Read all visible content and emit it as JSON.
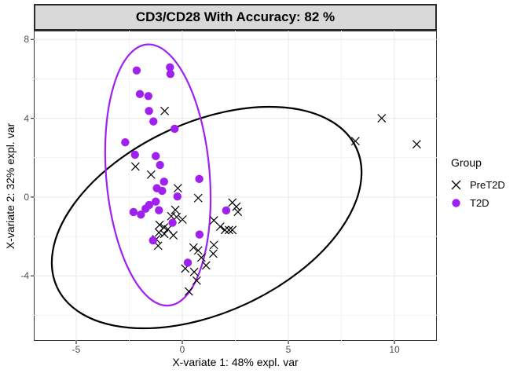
{
  "title": "CD3/CD28 With Accuracy: 82 %",
  "axes": {
    "x_title": "X-variate 1: 48% expl. var",
    "y_title": "X-variate 2: 32% expl. var"
  },
  "legend": {
    "title": "Group",
    "items": [
      {
        "label": "PreT2D",
        "marker": "x",
        "color": "#000000"
      },
      {
        "label": "T2D",
        "marker": "circle",
        "color": "#A020F0"
      }
    ]
  },
  "chart_data": {
    "type": "scatter",
    "title": "CD3/CD28 With Accuracy: 82 %",
    "xlabel": "X-variate 1: 48% expl. var",
    "ylabel": "X-variate 2: 32% expl. var",
    "xlim": [
      -7,
      12
    ],
    "ylim": [
      -7.3,
      8.45
    ],
    "x_ticks": [
      -5,
      0,
      5,
      10
    ],
    "x_minor_ticks": [
      -2.5,
      2.5,
      7.5
    ],
    "y_ticks": [
      8,
      4,
      0,
      -4
    ],
    "y_minor_ticks": [
      6,
      2,
      -2,
      -6
    ],
    "grid": true,
    "legend_position": "right",
    "colors": {
      "major_grid": "#e7e7e7",
      "minor_grid": "#f2f2f2",
      "tick": "#333333"
    },
    "series": [
      {
        "name": "PreT2D",
        "marker": "x",
        "color": "#000000",
        "points": [
          [
            -0.83,
            4.37
          ],
          [
            -2.21,
            1.55
          ],
          [
            -1.47,
            1.14
          ],
          [
            -0.21,
            0.45
          ],
          [
            0.75,
            -0.05
          ],
          [
            2.36,
            -0.28
          ],
          [
            2.55,
            -0.49
          ],
          [
            2.62,
            -0.75
          ],
          [
            -0.33,
            -0.65
          ],
          [
            -0.52,
            -0.97
          ],
          [
            -0.27,
            -1.01
          ],
          [
            0.01,
            -1.14
          ],
          [
            1.49,
            -1.18
          ],
          [
            1.79,
            -1.5
          ],
          [
            2.01,
            -1.67
          ],
          [
            2.2,
            -1.67
          ],
          [
            2.36,
            -1.67
          ],
          [
            -1.07,
            -1.41
          ],
          [
            -0.86,
            -1.54
          ],
          [
            -0.68,
            -1.63
          ],
          [
            -1.1,
            -1.8
          ],
          [
            -0.85,
            -1.87
          ],
          [
            -0.42,
            -1.94
          ],
          [
            -1.23,
            -2.14
          ],
          [
            -1.14,
            -2.47
          ],
          [
            0.53,
            -2.56
          ],
          [
            0.75,
            -2.71
          ],
          [
            1.49,
            -2.43
          ],
          [
            1.46,
            -2.87
          ],
          [
            0.9,
            -3.07
          ],
          [
            1.12,
            -3.47
          ],
          [
            0.14,
            -3.63
          ],
          [
            0.56,
            -3.8
          ],
          [
            0.68,
            -4.24
          ],
          [
            0.31,
            -4.79
          ],
          [
            8.16,
            2.84
          ],
          [
            9.4,
            4.0
          ],
          [
            11.05,
            2.68
          ]
        ]
      },
      {
        "name": "T2D",
        "marker": "circle",
        "color": "#A020F0",
        "points": [
          [
            -2.15,
            6.43
          ],
          [
            -0.58,
            6.59
          ],
          [
            -0.56,
            6.25
          ],
          [
            -2.0,
            5.23
          ],
          [
            -1.6,
            5.13
          ],
          [
            -1.57,
            4.37
          ],
          [
            -1.36,
            3.84
          ],
          [
            -0.36,
            3.47
          ],
          [
            -2.69,
            2.78
          ],
          [
            -2.23,
            2.15
          ],
          [
            -1.25,
            2.08
          ],
          [
            -1.05,
            1.63
          ],
          [
            0.8,
            0.92
          ],
          [
            -0.86,
            0.78
          ],
          [
            -1.2,
            0.45
          ],
          [
            -0.95,
            0.32
          ],
          [
            -0.23,
            0.03
          ],
          [
            -1.25,
            -0.23
          ],
          [
            -1.56,
            -0.4
          ],
          [
            -1.73,
            -0.59
          ],
          [
            -2.3,
            -0.76
          ],
          [
            -1.95,
            -0.89
          ],
          [
            -1.1,
            -0.67
          ],
          [
            2.07,
            -0.68
          ],
          [
            -0.46,
            -1.3
          ],
          [
            0.81,
            -1.9
          ],
          [
            -1.38,
            -2.2
          ],
          [
            0.26,
            -3.33
          ]
        ]
      }
    ],
    "ellipses": [
      {
        "group": "PreT2D",
        "color": "#000000",
        "cx": 1.15,
        "cy": -1.04,
        "rx": 7.78,
        "ry": 4.82,
        "angle_deg": -25
      },
      {
        "group": "T2D",
        "color": "#A020F0",
        "cx": -1.15,
        "cy": 1.12,
        "rx": 2.44,
        "ry": 6.65,
        "angle_deg": -4.8
      }
    ]
  }
}
